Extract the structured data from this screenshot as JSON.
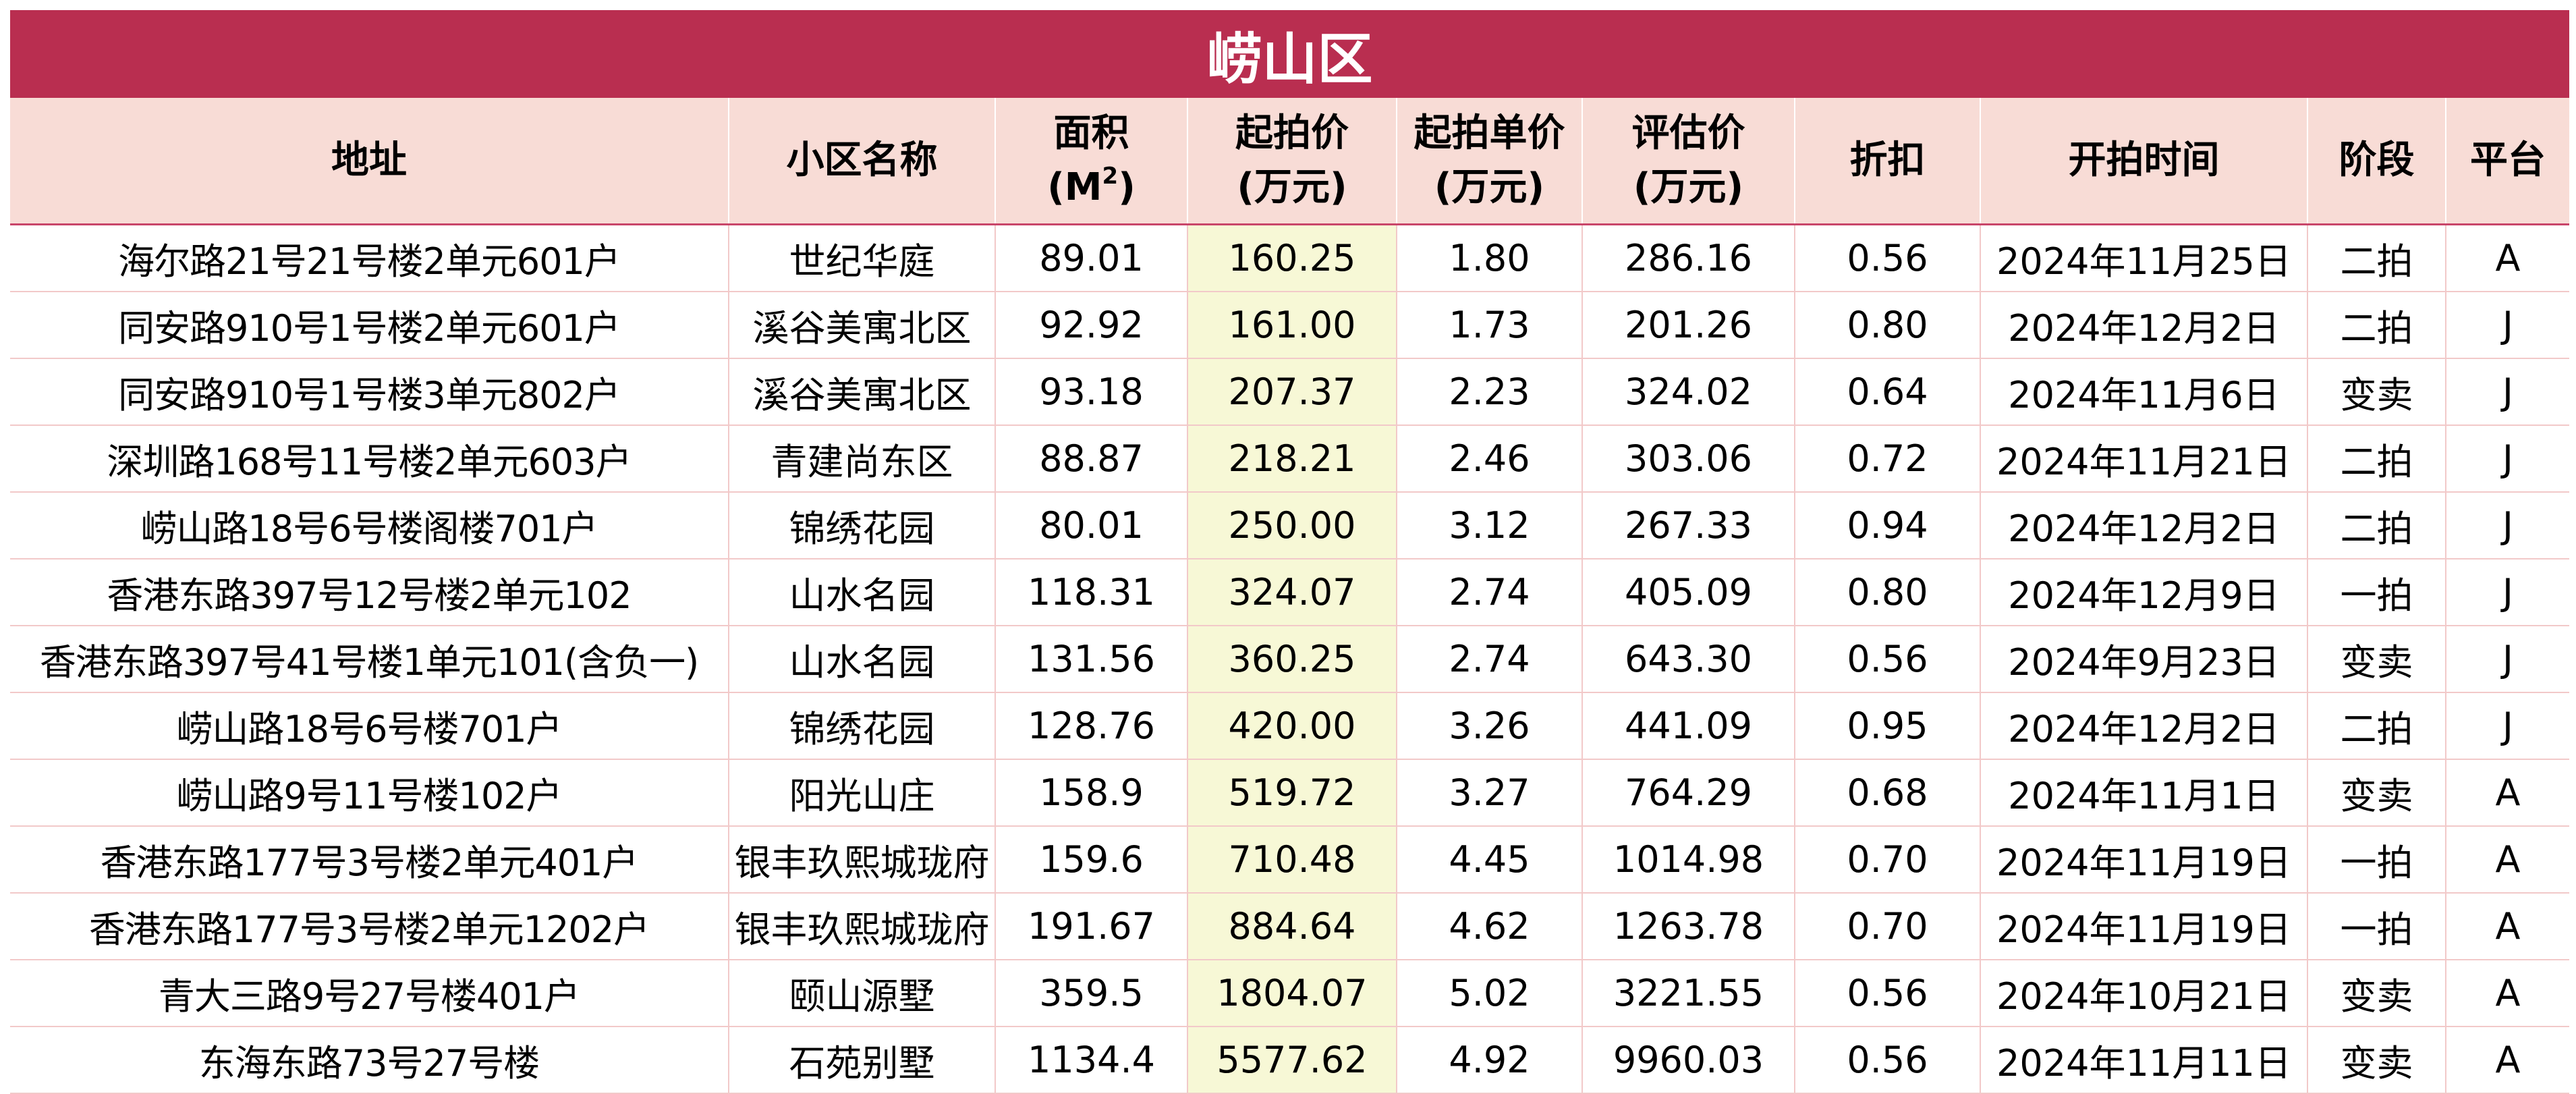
{
  "title": "崂山区",
  "columns": [
    {
      "key": "addr",
      "line1": "地址",
      "line2": ""
    },
    {
      "key": "name",
      "line1": "小区名称",
      "line2": ""
    },
    {
      "key": "area",
      "line1": "面积",
      "line2": "(M",
      "sup": "2",
      "line2_end": ")"
    },
    {
      "key": "price",
      "line1": "起拍价",
      "line2": "(万元)"
    },
    {
      "key": "unit",
      "line1": "起拍单价",
      "line2": "(万元)"
    },
    {
      "key": "eval",
      "line1": "评估价",
      "line2": "(万元)"
    },
    {
      "key": "disc",
      "line1": "折扣",
      "line2": ""
    },
    {
      "key": "time",
      "line1": "开拍时间",
      "line2": ""
    },
    {
      "key": "stage",
      "line1": "阶段",
      "line2": ""
    },
    {
      "key": "plat",
      "line1": "平台",
      "line2": ""
    }
  ],
  "rows": [
    [
      "海尔路21号21号楼2单元601户",
      "世纪华庭",
      "89.01",
      "160.25",
      "1.80",
      "286.16",
      "0.56",
      "2024年11月25日",
      "二拍",
      "A"
    ],
    [
      "同安路910号1号楼2单元601户",
      "溪谷美寓北区",
      "92.92",
      "161.00",
      "1.73",
      "201.26",
      "0.80",
      "2024年12月2日",
      "二拍",
      "J"
    ],
    [
      "同安路910号1号楼3单元802户",
      "溪谷美寓北区",
      "93.18",
      "207.37",
      "2.23",
      "324.02",
      "0.64",
      "2024年11月6日",
      "变卖",
      "J"
    ],
    [
      "深圳路168号11号楼2单元603户",
      "青建尚东区",
      "88.87",
      "218.21",
      "2.46",
      "303.06",
      "0.72",
      "2024年11月21日",
      "二拍",
      "J"
    ],
    [
      "崂山路18号6号楼阁楼701户",
      "锦绣花园",
      "80.01",
      "250.00",
      "3.12",
      "267.33",
      "0.94",
      "2024年12月2日",
      "二拍",
      "J"
    ],
    [
      "香港东路397号12号楼2单元102",
      "山水名园",
      "118.31",
      "324.07",
      "2.74",
      "405.09",
      "0.80",
      "2024年12月9日",
      "一拍",
      "J"
    ],
    [
      "香港东路397号41号楼1单元101(含负一)",
      "山水名园",
      "131.56",
      "360.25",
      "2.74",
      "643.30",
      "0.56",
      "2024年9月23日",
      "变卖",
      "J"
    ],
    [
      "崂山路18号6号楼701户",
      "锦绣花园",
      "128.76",
      "420.00",
      "3.26",
      "441.09",
      "0.95",
      "2024年12月2日",
      "二拍",
      "J"
    ],
    [
      "崂山路9号11号楼102户",
      "阳光山庄",
      "158.9",
      "519.72",
      "3.27",
      "764.29",
      "0.68",
      "2024年11月1日",
      "变卖",
      "A"
    ],
    [
      "香港东路177号3号楼2单元401户",
      "银丰玖熙城珑府",
      "159.6",
      "710.48",
      "4.45",
      "1014.98",
      "0.70",
      "2024年11月19日",
      "一拍",
      "A"
    ],
    [
      "香港东路177号3号楼2单元1202户",
      "银丰玖熙城珑府",
      "191.67",
      "884.64",
      "4.62",
      "1263.78",
      "0.70",
      "2024年11月19日",
      "一拍",
      "A"
    ],
    [
      "青大三路9号27号楼401户",
      "颐山源墅",
      "359.5",
      "1804.07",
      "5.02",
      "3221.55",
      "0.56",
      "2024年10月21日",
      "变卖",
      "A"
    ],
    [
      "东海东路73号27号楼",
      "石苑别墅",
      "1134.4",
      "5577.62",
      "4.92",
      "9960.03",
      "0.56",
      "2024年11月11日",
      "变卖",
      "A"
    ]
  ]
}
